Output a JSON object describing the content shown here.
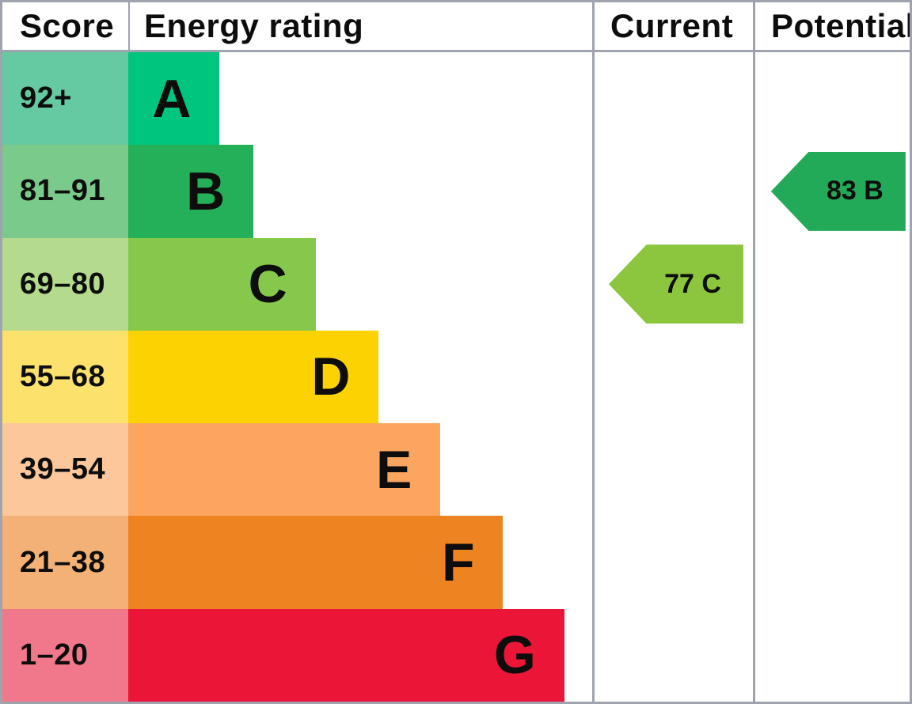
{
  "header": {
    "score": "Score",
    "energy_rating": "Energy rating",
    "current": "Current",
    "potential": "Potential"
  },
  "bands": [
    {
      "range": "92+",
      "letter": "A",
      "cell_color": "#65c9a1",
      "bar_color": "#00c57f",
      "bar_width_pct": 19.7
    },
    {
      "range": "81–91",
      "letter": "B",
      "cell_color": "#7acb8b",
      "bar_color": "#24b058",
      "bar_width_pct": 27.0
    },
    {
      "range": "69–80",
      "letter": "C",
      "cell_color": "#b4da8e",
      "bar_color": "#85c84b",
      "bar_width_pct": 40.4
    },
    {
      "range": "55–68",
      "letter": "D",
      "cell_color": "#fce26c",
      "bar_color": "#fcd203",
      "bar_width_pct": 54.0
    },
    {
      "range": "39–54",
      "letter": "E",
      "cell_color": "#fbc79b",
      "bar_color": "#fba55f",
      "bar_width_pct": 67.3
    },
    {
      "range": "21–38",
      "letter": "F",
      "cell_color": "#f3b176",
      "bar_color": "#ee8322",
      "bar_width_pct": 80.8
    },
    {
      "range": "1–20",
      "letter": "G",
      "cell_color": "#f0788a",
      "bar_color": "#ea1537",
      "bar_width_pct": 94.0
    }
  ],
  "current_marker": {
    "label": "77 C",
    "value": 77,
    "rating": "C",
    "band_index": 2,
    "color": "#8bc63e"
  },
  "potential_marker": {
    "label": "83 B",
    "value": 83,
    "rating": "B",
    "band_index": 1,
    "color": "#22aa58"
  },
  "chart_data": {
    "type": "bar",
    "title": "Energy rating",
    "columns": [
      "Score",
      "Energy rating",
      "Current",
      "Potential"
    ],
    "categories": [
      "A",
      "B",
      "C",
      "D",
      "E",
      "F",
      "G"
    ],
    "score_ranges": [
      "92+",
      "81-91",
      "69-80",
      "55-68",
      "39-54",
      "21-38",
      "1-20"
    ],
    "bar_width_pct": [
      19.7,
      27.0,
      40.4,
      54.0,
      67.3,
      80.8,
      94.0
    ],
    "band_colors": [
      "#00c57f",
      "#24b058",
      "#85c84b",
      "#fcd203",
      "#fba55f",
      "#ee8322",
      "#ea1537"
    ],
    "current": {
      "score": 77,
      "rating": "C"
    },
    "potential": {
      "score": 83,
      "rating": "B"
    },
    "legend_position": "none",
    "grid": false
  }
}
